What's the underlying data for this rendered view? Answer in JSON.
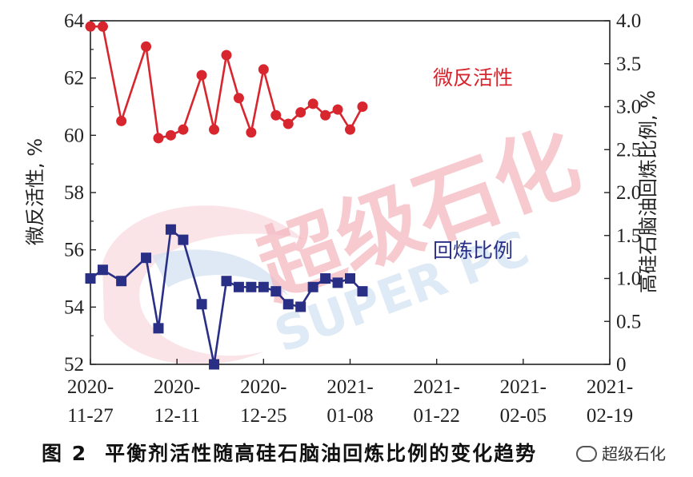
{
  "chart_data": {
    "type": "line",
    "x": [
      "2020-11-27",
      "2020-12-01",
      "2020-12-05",
      "2020-12-09",
      "2020-12-13",
      "2020-12-17",
      "2020-12-21",
      "2020-12-25",
      "2020-12-29",
      "2021-01-02",
      "2021-01-06",
      "2021-01-08",
      "2021-01-11",
      "2021-01-15",
      "2021-01-19",
      "2021-01-22",
      "2021-01-26",
      "2021-01-30",
      "2021-02-03",
      "2021-02-07",
      "2021-02-10",
      "2021-02-14"
    ],
    "x_ticks": [
      "2020-\n11-27",
      "2020-\n12-11",
      "2020-\n12-25",
      "2021-\n01-08",
      "2021-\n01-22",
      "2021-\n02-05",
      "2021-\n02-19"
    ],
    "x_tick_lines": [
      [
        "2020-",
        "11-27"
      ],
      [
        "2020-",
        "12-11"
      ],
      [
        "2020-",
        "12-25"
      ],
      [
        "2021-",
        "01-08"
      ],
      [
        "2021-",
        "01-22"
      ],
      [
        "2021-",
        "02-05"
      ],
      [
        "2021-",
        "02-19"
      ]
    ],
    "ylabel": "微反活性, %",
    "y2label": "高硅石脑油回炼比例, %",
    "ylim": [
      52,
      64
    ],
    "y2lim": [
      0,
      4.0
    ],
    "y_ticks": [
      "52",
      "54",
      "56",
      "58",
      "60",
      "62",
      "64"
    ],
    "y2_ticks": [
      "0",
      "0.5",
      "1.0",
      "1.5",
      "2.0",
      "2.5",
      "3.0",
      "3.5",
      "4.0"
    ],
    "series": [
      {
        "name": "微反活性",
        "axis": "left",
        "color": "#d8262e",
        "marker": "circle",
        "points": [
          [
            "2020-11-27",
            63.8
          ],
          [
            "2020-11-29",
            63.8
          ],
          [
            "2020-12-02",
            60.5
          ],
          [
            "2020-12-06",
            63.1
          ],
          [
            "2020-12-08",
            59.9
          ],
          [
            "2020-12-10",
            60.0
          ],
          [
            "2020-12-12",
            60.2
          ],
          [
            "2020-12-15",
            62.1
          ],
          [
            "2020-12-17",
            60.2
          ],
          [
            "2020-12-19",
            62.8
          ],
          [
            "2020-12-21",
            61.3
          ],
          [
            "2020-12-23",
            60.1
          ],
          [
            "2020-12-25",
            62.3
          ],
          [
            "2020-12-27",
            60.7
          ],
          [
            "2020-12-29",
            60.4
          ],
          [
            "2020-12-31",
            60.8
          ],
          [
            "2021-01-02",
            61.1
          ],
          [
            "2021-01-04",
            60.7
          ],
          [
            "2021-01-06",
            60.9
          ],
          [
            "2021-01-08",
            60.2
          ],
          [
            "2021-01-10",
            61.0
          ]
        ]
      },
      {
        "name": "回炼比例",
        "axis": "right",
        "color": "#2a2f86",
        "marker": "square",
        "points": []
      }
    ]
  },
  "caption": {
    "figure": "图 2",
    "text": "平衡剂活性随高硅石脑油回炼比例的变化趋势"
  },
  "watermark": {
    "text": "超级石化",
    "subtext": "SUPER PC",
    "badge": "超级石化"
  },
  "colors": {
    "red": "#d8262e",
    "blue": "#2a2f86"
  }
}
